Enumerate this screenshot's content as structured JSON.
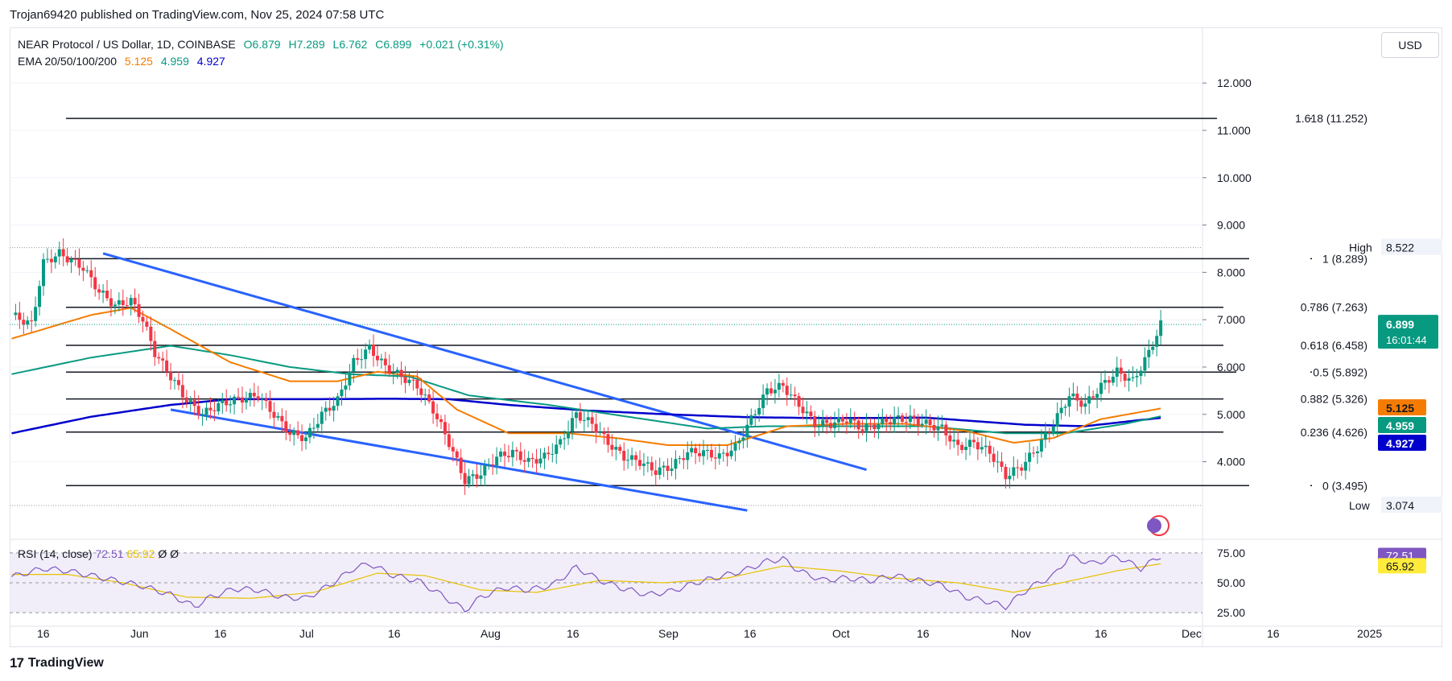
{
  "header": {
    "published": "Trojan69420 published on TradingView.com, Nov 25, 2024 07:58 UTC"
  },
  "legend": {
    "symbol": "NEAR Protocol / US Dollar, 1D, COINBASE",
    "open": "O6.879",
    "high": "H7.289",
    "low": "L6.762",
    "close": "C6.899",
    "change": "+0.021 (+0.31%)",
    "ema_label": "EMA 20/50/100/200",
    "ema20": "5.125",
    "ema50": "4.959",
    "ema100": "4.927"
  },
  "currency_button": "USD",
  "rsi_legend": {
    "label": "RSI (14, close)",
    "rsi": "72.51",
    "ma": "65.92",
    "extra1": "Ø",
    "extra2": "Ø"
  },
  "footer": {
    "brand": "TradingView",
    "logo": "17"
  },
  "colors": {
    "up": "#089981",
    "down": "#f23645",
    "ema20": "#f57c00",
    "ema50": "#089981",
    "ema100": "#0000cc",
    "channel": "#2962ff",
    "fib": "#131722",
    "rsi": "#7e57c2",
    "rsi_ma": "#e6c200"
  },
  "chart_data": {
    "type": "candlestick",
    "price_axis": {
      "ticks": [
        "12.000",
        "11.000",
        "10.000",
        "9.000",
        "8.000",
        "7.000",
        "6.000",
        "5.000",
        "4.000"
      ],
      "ylim": [
        2.7,
        12.7
      ]
    },
    "time_axis": {
      "ticks": [
        "16",
        "Jun",
        "16",
        "Jul",
        "16",
        "Aug",
        "16",
        "Sep",
        "16",
        "Oct",
        "16",
        "Nov",
        "16",
        "Dec",
        "16",
        "2025"
      ]
    },
    "fib_levels": [
      {
        "label": "1.618 (11.252)",
        "value": 11.252
      },
      {
        "label": "1 (8.289)",
        "value": 8.289
      },
      {
        "label": "0.786 (7.263)",
        "value": 7.263
      },
      {
        "label": "0.618 (6.458)",
        "value": 6.458
      },
      {
        "label": "0.5 (5.892)",
        "value": 5.892
      },
      {
        "label": "0.382 (5.326)",
        "value": 5.326
      },
      {
        "label": "0.236 (4.626)",
        "value": 4.626
      },
      {
        "label": "0 (3.495)",
        "value": 3.495
      }
    ],
    "high": {
      "label": "High",
      "value": "8.522"
    },
    "low": {
      "label": "Low",
      "value": "3.074"
    },
    "last_price": {
      "value": "6.899",
      "countdown": "16:01:44"
    },
    "ema_badges": [
      {
        "value": "5.125",
        "color": "#f57c00"
      },
      {
        "value": "4.959",
        "color": "#089981"
      },
      {
        "value": "4.927",
        "color": "#0000cc"
      }
    ],
    "ohlc_keypoints": [
      [
        0,
        7.1
      ],
      [
        5,
        6.9
      ],
      [
        8,
        8.2
      ],
      [
        12,
        8.4
      ],
      [
        18,
        8.1
      ],
      [
        22,
        7.6
      ],
      [
        26,
        7.3
      ],
      [
        30,
        7.4
      ],
      [
        33,
        7.0
      ],
      [
        36,
        6.3
      ],
      [
        40,
        5.8
      ],
      [
        44,
        5.3
      ],
      [
        48,
        5.0
      ],
      [
        52,
        5.2
      ],
      [
        56,
        5.3
      ],
      [
        62,
        5.4
      ],
      [
        66,
        5.0
      ],
      [
        70,
        4.6
      ],
      [
        74,
        4.5
      ],
      [
        78,
        5.0
      ],
      [
        82,
        5.3
      ],
      [
        86,
        6.1
      ],
      [
        90,
        6.4
      ],
      [
        94,
        6.0
      ],
      [
        98,
        5.8
      ],
      [
        102,
        5.6
      ],
      [
        106,
        5.1
      ],
      [
        110,
        4.4
      ],
      [
        114,
        3.6
      ],
      [
        118,
        3.75
      ],
      [
        122,
        4.1
      ],
      [
        126,
        4.2
      ],
      [
        130,
        4.0
      ],
      [
        134,
        4.1
      ],
      [
        138,
        4.4
      ],
      [
        142,
        5.0
      ],
      [
        146,
        4.8
      ],
      [
        150,
        4.4
      ],
      [
        154,
        4.1
      ],
      [
        158,
        4.0
      ],
      [
        162,
        3.8
      ],
      [
        166,
        3.9
      ],
      [
        170,
        4.2
      ],
      [
        174,
        4.2
      ],
      [
        178,
        4.1
      ],
      [
        182,
        4.3
      ],
      [
        186,
        4.9
      ],
      [
        190,
        5.5
      ],
      [
        194,
        5.6
      ],
      [
        198,
        5.2
      ],
      [
        202,
        4.8
      ],
      [
        206,
        4.8
      ],
      [
        210,
        4.9
      ],
      [
        214,
        4.7
      ],
      [
        218,
        4.8
      ],
      [
        222,
        4.9
      ],
      [
        226,
        4.9
      ],
      [
        230,
        4.8
      ],
      [
        234,
        4.7
      ],
      [
        238,
        4.3
      ],
      [
        242,
        4.4
      ],
      [
        246,
        4.2
      ],
      [
        250,
        3.7
      ],
      [
        254,
        3.9
      ],
      [
        258,
        4.3
      ],
      [
        262,
        4.8
      ],
      [
        266,
        5.4
      ],
      [
        270,
        5.2
      ],
      [
        274,
        5.6
      ],
      [
        278,
        5.9
      ],
      [
        282,
        5.7
      ],
      [
        286,
        6.3
      ],
      [
        289,
        6.9
      ]
    ],
    "ema20_keypoints": [
      [
        0,
        6.6
      ],
      [
        20,
        7.1
      ],
      [
        30,
        7.25
      ],
      [
        40,
        6.8
      ],
      [
        55,
        6.1
      ],
      [
        70,
        5.7
      ],
      [
        82,
        5.7
      ],
      [
        92,
        5.9
      ],
      [
        102,
        5.8
      ],
      [
        112,
        5.1
      ],
      [
        125,
        4.6
      ],
      [
        140,
        4.6
      ],
      [
        152,
        4.5
      ],
      [
        165,
        4.35
      ],
      [
        180,
        4.35
      ],
      [
        195,
        4.75
      ],
      [
        210,
        4.8
      ],
      [
        225,
        4.8
      ],
      [
        240,
        4.65
      ],
      [
        252,
        4.4
      ],
      [
        262,
        4.5
      ],
      [
        274,
        4.9
      ],
      [
        289,
        5.125
      ]
    ],
    "ema50_keypoints": [
      [
        0,
        5.85
      ],
      [
        20,
        6.2
      ],
      [
        40,
        6.45
      ],
      [
        55,
        6.25
      ],
      [
        70,
        6.0
      ],
      [
        85,
        5.85
      ],
      [
        100,
        5.8
      ],
      [
        115,
        5.4
      ],
      [
        135,
        5.2
      ],
      [
        155,
        4.95
      ],
      [
        175,
        4.7
      ],
      [
        190,
        4.75
      ],
      [
        210,
        4.75
      ],
      [
        230,
        4.75
      ],
      [
        250,
        4.6
      ],
      [
        265,
        4.6
      ],
      [
        280,
        4.8
      ],
      [
        289,
        4.959
      ]
    ],
    "ema100_keypoints": [
      [
        0,
        4.6
      ],
      [
        20,
        4.95
      ],
      [
        40,
        5.2
      ],
      [
        55,
        5.32
      ],
      [
        75,
        5.32
      ],
      [
        95,
        5.33
      ],
      [
        110,
        5.32
      ],
      [
        125,
        5.2
      ],
      [
        145,
        5.08
      ],
      [
        165,
        5.0
      ],
      [
        185,
        4.94
      ],
      [
        205,
        4.92
      ],
      [
        230,
        4.93
      ],
      [
        255,
        4.78
      ],
      [
        270,
        4.75
      ],
      [
        289,
        4.927
      ]
    ],
    "channel_lines": [
      {
        "from": [
          23,
          8.4
        ],
        "to": [
          215,
          3.83
        ]
      },
      {
        "from": [
          40,
          5.1
        ],
        "to": [
          185,
          2.97
        ]
      }
    ],
    "rsi": {
      "ticks": [
        "75.00",
        "50.00",
        "25.00"
      ],
      "ylim": [
        15,
        85
      ],
      "rsi_value": "72.51",
      "ma_value": "65.92",
      "rsi_keypoints": [
        [
          0,
          55
        ],
        [
          8,
          62
        ],
        [
          14,
          60
        ],
        [
          20,
          56
        ],
        [
          26,
          52
        ],
        [
          32,
          48
        ],
        [
          40,
          40
        ],
        [
          46,
          30
        ],
        [
          50,
          38
        ],
        [
          56,
          45
        ],
        [
          62,
          44
        ],
        [
          68,
          38
        ],
        [
          74,
          37
        ],
        [
          80,
          48
        ],
        [
          86,
          62
        ],
        [
          90,
          66
        ],
        [
          96,
          56
        ],
        [
          102,
          52
        ],
        [
          108,
          40
        ],
        [
          114,
          27
        ],
        [
          118,
          38
        ],
        [
          124,
          46
        ],
        [
          130,
          44
        ],
        [
          136,
          48
        ],
        [
          142,
          63
        ],
        [
          148,
          52
        ],
        [
          154,
          45
        ],
        [
          160,
          40
        ],
        [
          166,
          43
        ],
        [
          172,
          50
        ],
        [
          178,
          55
        ],
        [
          184,
          60
        ],
        [
          190,
          68
        ],
        [
          194,
          70
        ],
        [
          198,
          60
        ],
        [
          204,
          52
        ],
        [
          210,
          54
        ],
        [
          216,
          52
        ],
        [
          222,
          56
        ],
        [
          228,
          52
        ],
        [
          234,
          48
        ],
        [
          240,
          38
        ],
        [
          246,
          34
        ],
        [
          250,
          30
        ],
        [
          256,
          46
        ],
        [
          262,
          56
        ],
        [
          266,
          72
        ],
        [
          272,
          66
        ],
        [
          278,
          72
        ],
        [
          284,
          62
        ],
        [
          289,
          72.51
        ]
      ],
      "ma_keypoints": [
        [
          0,
          57
        ],
        [
          14,
          57
        ],
        [
          28,
          50
        ],
        [
          44,
          38
        ],
        [
          60,
          37
        ],
        [
          76,
          42
        ],
        [
          92,
          58
        ],
        [
          104,
          56
        ],
        [
          118,
          44
        ],
        [
          132,
          42
        ],
        [
          148,
          52
        ],
        [
          164,
          50
        ],
        [
          180,
          54
        ],
        [
          194,
          64
        ],
        [
          208,
          60
        ],
        [
          222,
          54
        ],
        [
          238,
          50
        ],
        [
          252,
          42
        ],
        [
          264,
          50
        ],
        [
          278,
          60
        ],
        [
          289,
          65.92
        ]
      ]
    }
  }
}
